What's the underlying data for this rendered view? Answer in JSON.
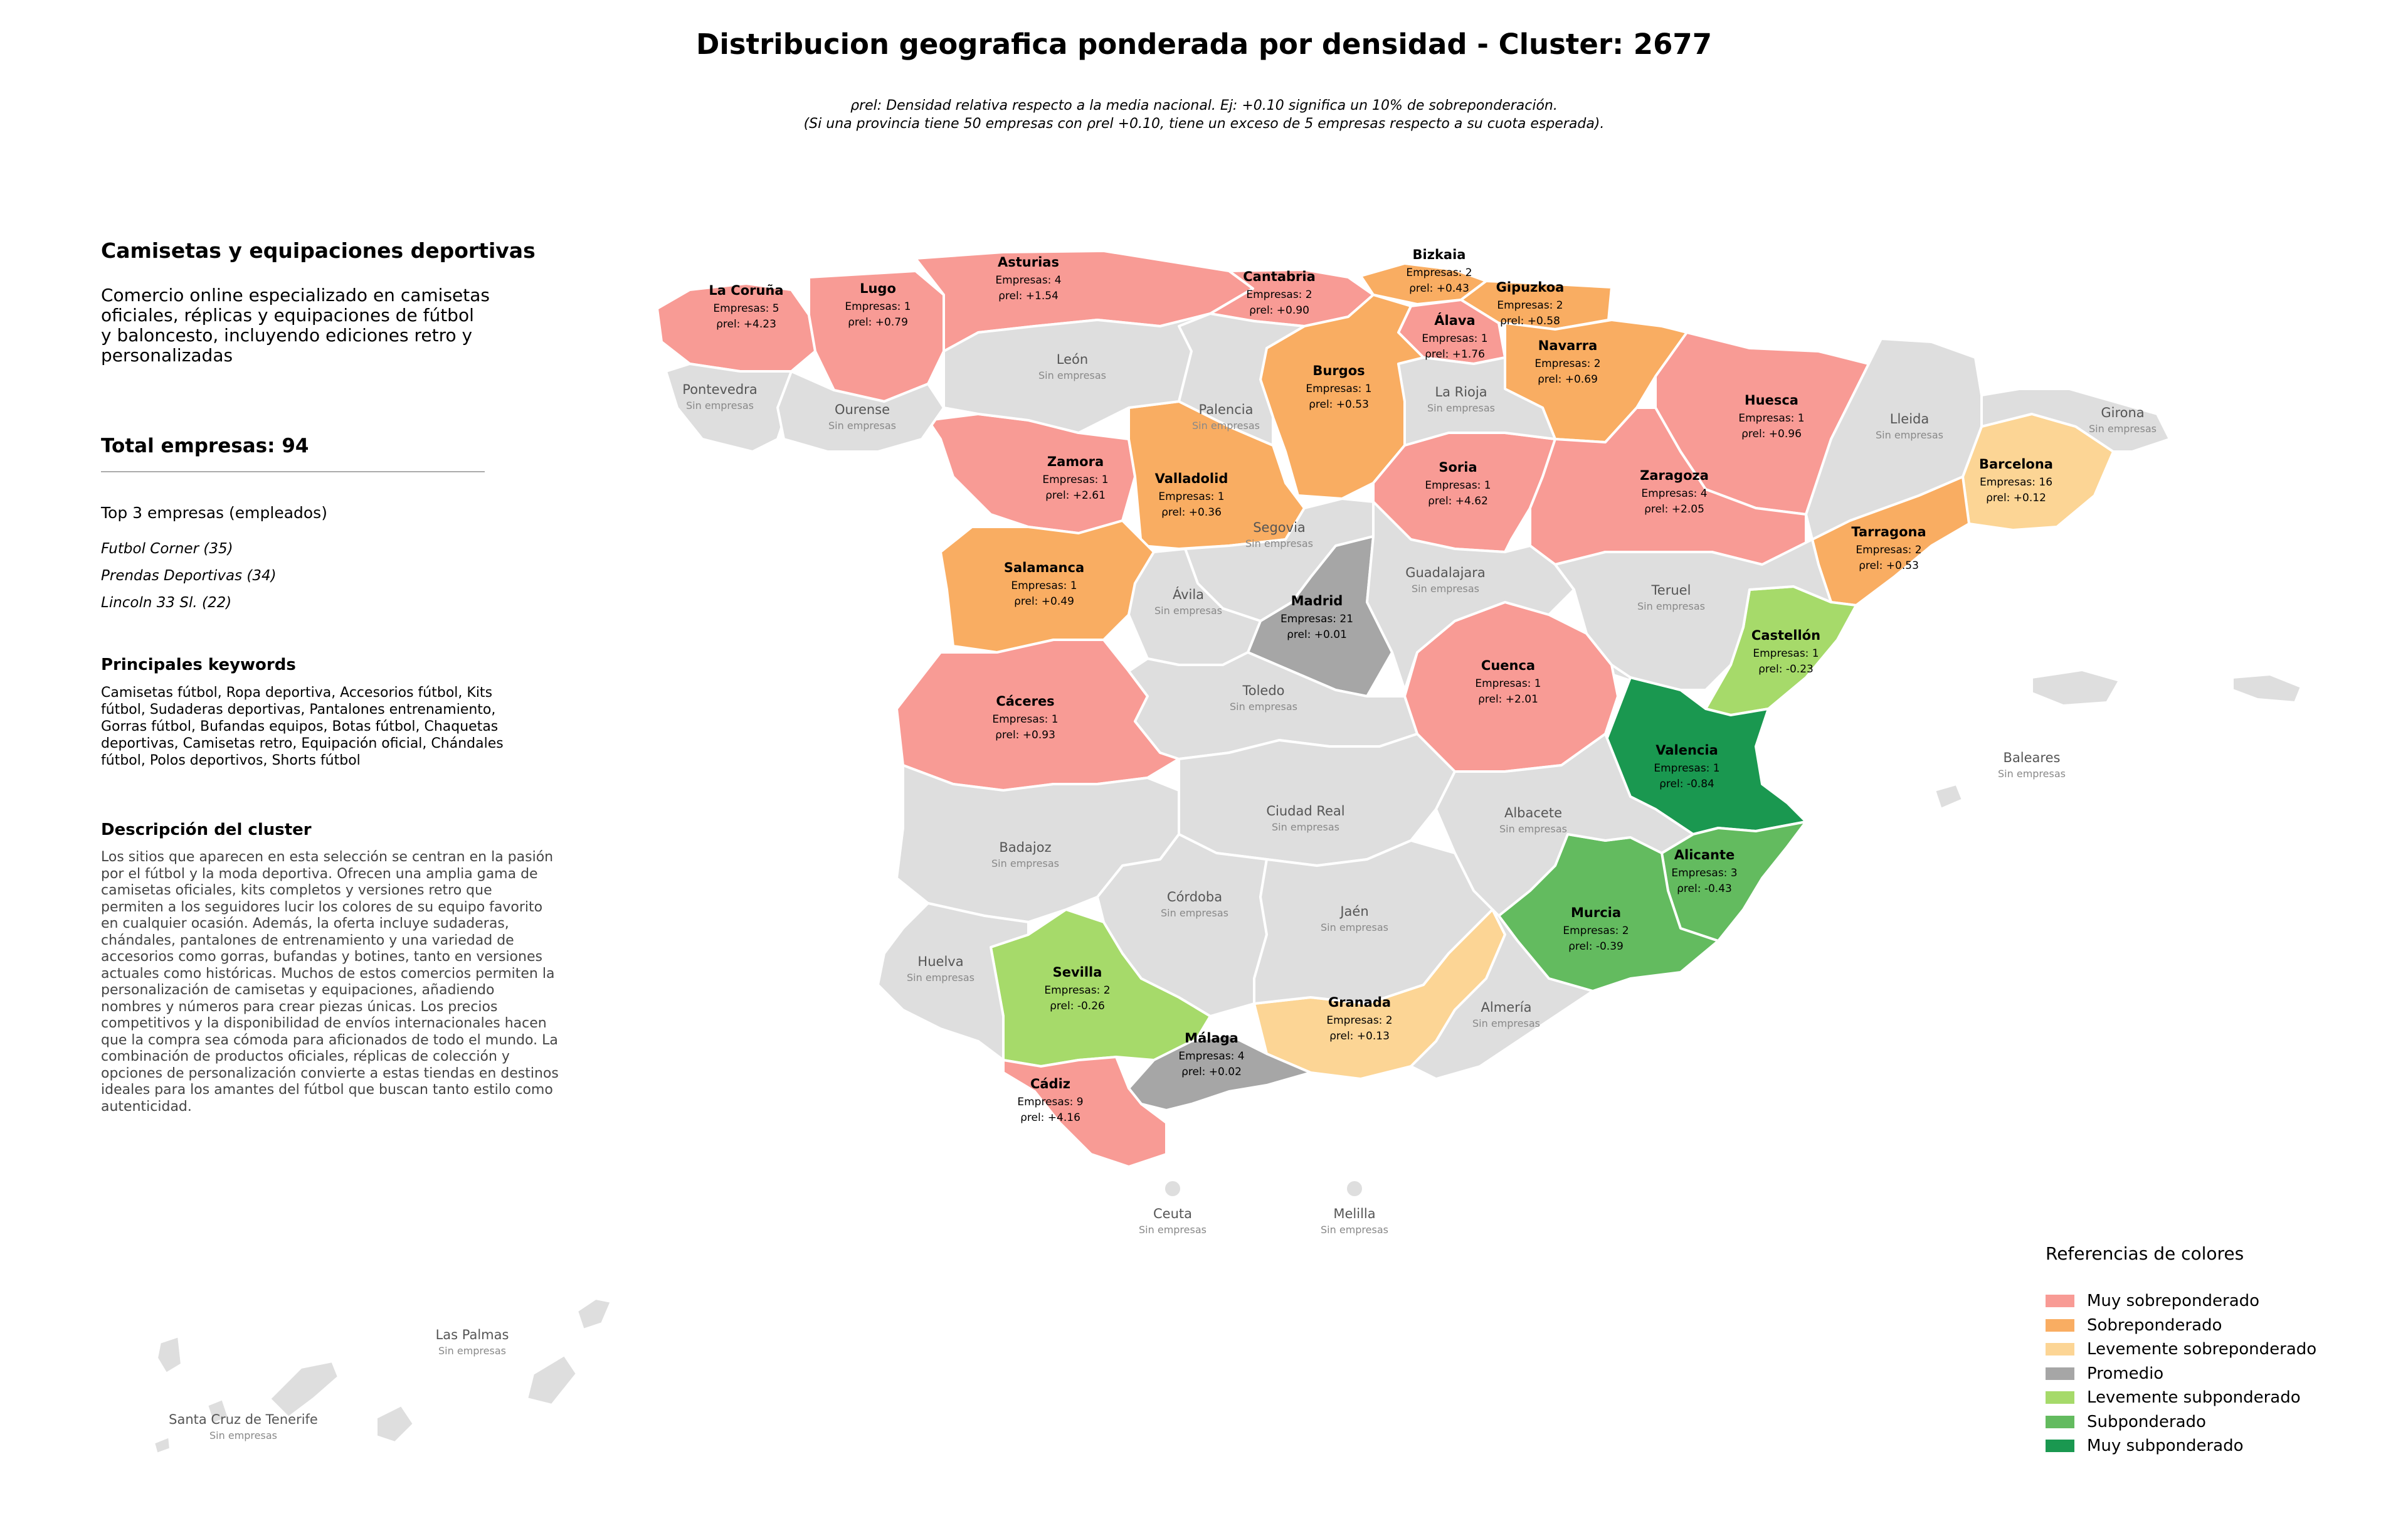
{
  "title": "Distribucion geografica ponderada por densidad - Cluster: 2677",
  "subtitle_line1": "ρrel: Densidad relativa respecto a la media nacional. Ej: +0.10 significa un 10% de sobreponderación.",
  "subtitle_line2": "(Si una provincia tiene 50 empresas con ρrel +0.10, tiene un exceso de 5 empresas respecto a su cuota esperada).",
  "panel": {
    "cluster_name": "Camisetas y equipaciones deportivas",
    "cluster_desc": "Comercio online especializado en camisetas oficiales, réplicas y equipaciones de fútbol y baloncesto, incluyendo ediciones retro y personalizadas",
    "total": "Total empresas: 94",
    "top3_title": "Top 3 empresas (empleados)",
    "top3": [
      "Futbol Corner (35)",
      "Prendas Deportivas (34)",
      "Lincoln 33 Sl. (22)"
    ],
    "keywords_title": "Principales keywords",
    "keywords": "Camisetas fútbol, Ropa deportiva, Accesorios fútbol, Kits fútbol, Sudaderas deportivas, Pantalones entrenamiento, Gorras fútbol, Bufandas equipos, Botas fútbol, Chaquetas deportivas, Camisetas retro, Equipación oficial, Chándales fútbol, Polos deportivos, Shorts fútbol",
    "desc_title": "Descripción del cluster",
    "desc": "Los sitios que aparecen en esta selección se centran en la pasión por el fútbol y la moda deportiva. Ofrecen una amplia gama de camisetas oficiales, kits completos y versiones retro que permiten a los seguidores lucir los colores de su equipo favorito en cualquier ocasión. Además, la oferta incluye sudaderas, chándales, pantalones de entrenamiento y una variedad de accesorios como gorras, bufandas y botines, tanto en versiones actuales como históricas. Muchos de estos comercios permiten la personalización de camisetas y equipaciones, añadiendo nombres y números para crear piezas únicas. Los precios competitivos y la disponibilidad de envíos internacionales hacen que la compra sea cómoda para aficionados de todo el mundo. La combinación de productos oficiales, réplicas de colección y opciones de personalización convierte a estas tiendas en destinos ideales para los amantes del fútbol que buscan tanto estilo como autenticidad."
  },
  "legend": {
    "title": "Referencias de colores",
    "items": [
      {
        "label": "Muy sobreponderado",
        "color": "#f89b95"
      },
      {
        "label": "Sobreponderado",
        "color": "#f9ad62"
      },
      {
        "label": "Levemente sobreponderado",
        "color": "#fcd595"
      },
      {
        "label": "Promedio",
        "color": "#a6a6a6"
      },
      {
        "label": "Levemente subponderado",
        "color": "#a6da6a"
      },
      {
        "label": "Subponderado",
        "color": "#63bb5f"
      },
      {
        "label": "Muy subponderado",
        "color": "#1a9850"
      }
    ]
  },
  "no_data_color": "#dedede",
  "labels": {
    "empresas": "Empresas:",
    "rho": "ρrel:",
    "sin": "Sin empresas"
  },
  "provinces": [
    {
      "name": "La Coruña",
      "empresas": 5,
      "rho": "+4.23",
      "cat": 0
    },
    {
      "name": "Lugo",
      "empresas": 1,
      "rho": "+0.79",
      "cat": 0
    },
    {
      "name": "Asturias",
      "empresas": 4,
      "rho": "+1.54",
      "cat": 0
    },
    {
      "name": "Cantabria",
      "empresas": 2,
      "rho": "+0.90",
      "cat": 0
    },
    {
      "name": "Bizkaia",
      "empresas": 2,
      "rho": "+0.43",
      "cat": 1
    },
    {
      "name": "Gipuzkoa",
      "empresas": 2,
      "rho": "+0.58",
      "cat": 1
    },
    {
      "name": "Álava",
      "empresas": 1,
      "rho": "+1.76",
      "cat": 0
    },
    {
      "name": "Navarra",
      "empresas": 2,
      "rho": "+0.69",
      "cat": 1
    },
    {
      "name": "Burgos",
      "empresas": 1,
      "rho": "+0.53",
      "cat": 1
    },
    {
      "name": "Huesca",
      "empresas": 1,
      "rho": "+0.96",
      "cat": 0
    },
    {
      "name": "Zamora",
      "empresas": 1,
      "rho": "+2.61",
      "cat": 0
    },
    {
      "name": "Valladolid",
      "empresas": 1,
      "rho": "+0.36",
      "cat": 1
    },
    {
      "name": "Soria",
      "empresas": 1,
      "rho": "+4.62",
      "cat": 0
    },
    {
      "name": "Zaragoza",
      "empresas": 4,
      "rho": "+2.05",
      "cat": 0
    },
    {
      "name": "Barcelona",
      "empresas": 16,
      "rho": "+0.12",
      "cat": 2
    },
    {
      "name": "Tarragona",
      "empresas": 2,
      "rho": "+0.53",
      "cat": 1
    },
    {
      "name": "Salamanca",
      "empresas": 1,
      "rho": "+0.49",
      "cat": 1
    },
    {
      "name": "Madrid",
      "empresas": 21,
      "rho": "+0.01",
      "cat": 3
    },
    {
      "name": "Castellón",
      "empresas": 1,
      "rho": "-0.23",
      "cat": 4
    },
    {
      "name": "Cuenca",
      "empresas": 1,
      "rho": "+2.01",
      "cat": 0
    },
    {
      "name": "Cáceres",
      "empresas": 1,
      "rho": "+0.93",
      "cat": 0
    },
    {
      "name": "Valencia",
      "empresas": 1,
      "rho": "-0.84",
      "cat": 6
    },
    {
      "name": "Alicante",
      "empresas": 3,
      "rho": "-0.43",
      "cat": 5
    },
    {
      "name": "Murcia",
      "empresas": 2,
      "rho": "-0.39",
      "cat": 5
    },
    {
      "name": "Sevilla",
      "empresas": 2,
      "rho": "-0.26",
      "cat": 4
    },
    {
      "name": "Granada",
      "empresas": 2,
      "rho": "+0.13",
      "cat": 2
    },
    {
      "name": "Málaga",
      "empresas": 4,
      "rho": "+0.02",
      "cat": 3
    },
    {
      "name": "Cádiz",
      "empresas": 9,
      "rho": "+4.16",
      "cat": 0
    },
    {
      "name": "Pontevedra",
      "empresas": null
    },
    {
      "name": "Ourense",
      "empresas": null
    },
    {
      "name": "León",
      "empresas": null
    },
    {
      "name": "Palencia",
      "empresas": null
    },
    {
      "name": "La Rioja",
      "empresas": null
    },
    {
      "name": "Lleida",
      "empresas": null
    },
    {
      "name": "Girona",
      "empresas": null
    },
    {
      "name": "Segovia",
      "empresas": null
    },
    {
      "name": "Guadalajara",
      "empresas": null
    },
    {
      "name": "Ávila",
      "empresas": null
    },
    {
      "name": "Teruel",
      "empresas": null
    },
    {
      "name": "Toledo",
      "empresas": null
    },
    {
      "name": "Baleares",
      "empresas": null
    },
    {
      "name": "Ciudad Real",
      "empresas": null
    },
    {
      "name": "Albacete",
      "empresas": null
    },
    {
      "name": "Badajoz",
      "empresas": null
    },
    {
      "name": "Córdoba",
      "empresas": null
    },
    {
      "name": "Jaén",
      "empresas": null
    },
    {
      "name": "Huelva",
      "empresas": null
    },
    {
      "name": "Almería",
      "empresas": null
    },
    {
      "name": "Ceuta",
      "empresas": null
    },
    {
      "name": "Melilla",
      "empresas": null
    },
    {
      "name": "Las Palmas",
      "empresas": null
    },
    {
      "name": "Santa Cruz de Tenerife",
      "empresas": null
    }
  ]
}
